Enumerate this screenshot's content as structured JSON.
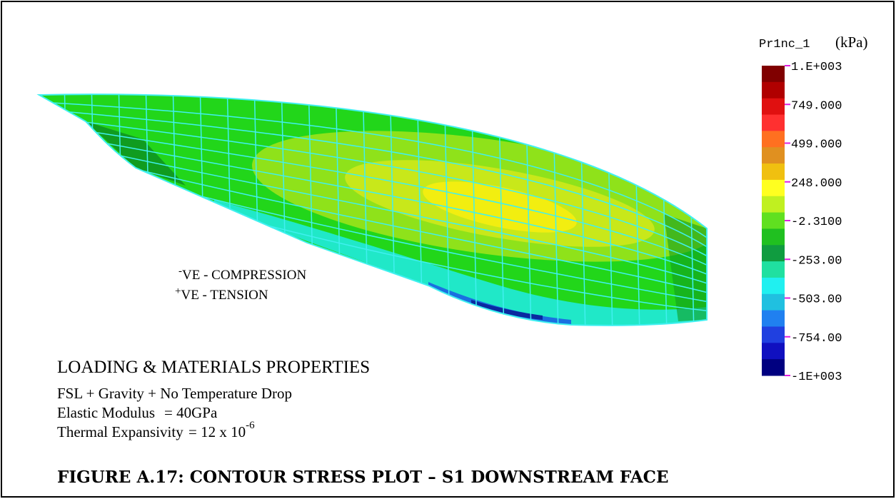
{
  "legend": {
    "title": "Pr1nc_1",
    "unit": "(kPa)",
    "labels": [
      "1.E+003",
      "749.000",
      "499.000",
      "248.000",
      "-2.3100",
      "-253.00",
      "-503.00",
      "-754.00",
      "-1E+003"
    ]
  },
  "notes": [
    {
      "sign": "-",
      "text": "VE - COMPRESSION"
    },
    {
      "sign": "+",
      "text": "VE - TENSION"
    }
  ],
  "loading": {
    "heading": "LOADING & MATERIALS PROPERTIES",
    "lines": [
      "FSL + Gravity + No Temperature Drop"
    ],
    "properties": [
      {
        "name": "Elastic Modulus",
        "value": "= 40GPa"
      },
      {
        "name": "Thermal Expansivity",
        "value": "= 12 x 10",
        "superscript": "-6"
      }
    ]
  },
  "caption": "FIGURE A.17: CONTOUR STRESS PLOT – S1 DOWNSTREAM FACE"
}
